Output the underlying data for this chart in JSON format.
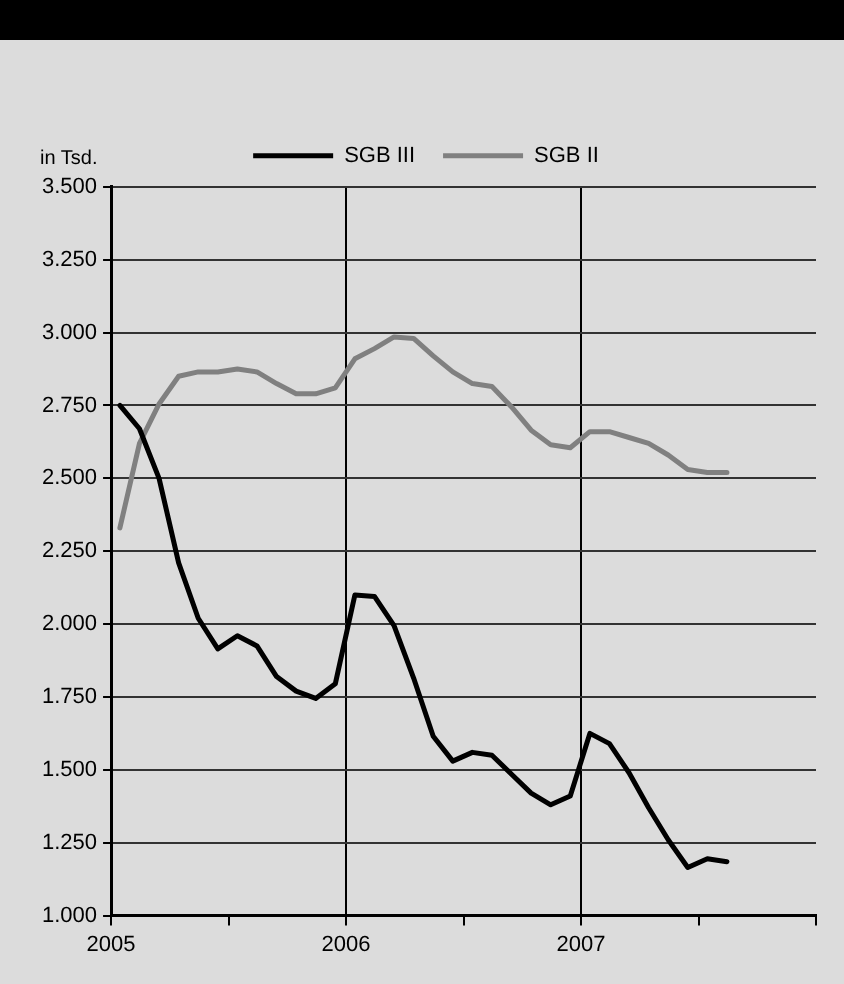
{
  "chart_data": {
    "type": "line",
    "ylabel": "in Tsd.",
    "legend": "top",
    "grid": true,
    "marker": "none",
    "line_style": "solid",
    "x": [
      "2005-01-15",
      "2005-02-15",
      "2005-03-15",
      "2005-04-15",
      "2005-05-15",
      "2005-06-15",
      "2005-07-15",
      "2005-08-15",
      "2005-09-15",
      "2005-10-15",
      "2005-11-15",
      "2005-12-15",
      "2006-01-15",
      "2006-02-15",
      "2006-03-15",
      "2006-04-15",
      "2006-05-15",
      "2006-06-15",
      "2006-07-15",
      "2006-08-15",
      "2006-09-15",
      "2006-10-15",
      "2006-11-15",
      "2006-12-15",
      "2007-01-15",
      "2007-02-15",
      "2007-03-15",
      "2007-04-15",
      "2007-05-15",
      "2007-06-15",
      "2007-07-15",
      "2007-08-15"
    ],
    "xlim": [
      "2005",
      "2008"
    ],
    "xticks": [
      {
        "value": "2005",
        "label": "2005"
      },
      {
        "value": "2005-07",
        "label": null
      },
      {
        "value": "2006",
        "label": "2006"
      },
      {
        "value": "2006-07",
        "label": null
      },
      {
        "value": "2007",
        "label": "2007"
      },
      {
        "value": "2007-07",
        "label": null
      },
      {
        "value": "2008",
        "label": null
      }
    ],
    "ylim": [
      1000,
      3500
    ],
    "yticks": [
      {
        "value": 1000,
        "label": "1.000"
      },
      {
        "value": 1250,
        "label": "1.250"
      },
      {
        "value": 1500,
        "label": "1.500"
      },
      {
        "value": 1750,
        "label": "1.750"
      },
      {
        "value": 2000,
        "label": "2.000"
      },
      {
        "value": 2250,
        "label": "2.250"
      },
      {
        "value": 2500,
        "label": "2.500"
      },
      {
        "value": 2750,
        "label": "2.750"
      },
      {
        "value": 3000,
        "label": "3.000"
      },
      {
        "value": 3250,
        "label": "3.250"
      },
      {
        "value": 3500,
        "label": "3.500"
      }
    ],
    "series": [
      {
        "name": "SGB III",
        "color": "#000000",
        "values": [
          2750,
          2670,
          2500,
          2210,
          2020,
          1915,
          1960,
          1925,
          1820,
          1770,
          1745,
          1795,
          2100,
          2095,
          1995,
          1815,
          1615,
          1530,
          1560,
          1550,
          1485,
          1420,
          1380,
          1410,
          1625,
          1590,
          1490,
          1370,
          1260,
          1165,
          1195,
          1185
        ]
      },
      {
        "name": "SGB II",
        "color": "#808080",
        "values": [
          2330,
          2620,
          2755,
          2850,
          2865,
          2865,
          2875,
          2865,
          2825,
          2790,
          2790,
          2810,
          2910,
          2945,
          2985,
          2980,
          2920,
          2865,
          2825,
          2815,
          2745,
          2665,
          2615,
          2605,
          2660,
          2660,
          2640,
          2620,
          2580,
          2530,
          2520,
          2520
        ]
      }
    ]
  }
}
